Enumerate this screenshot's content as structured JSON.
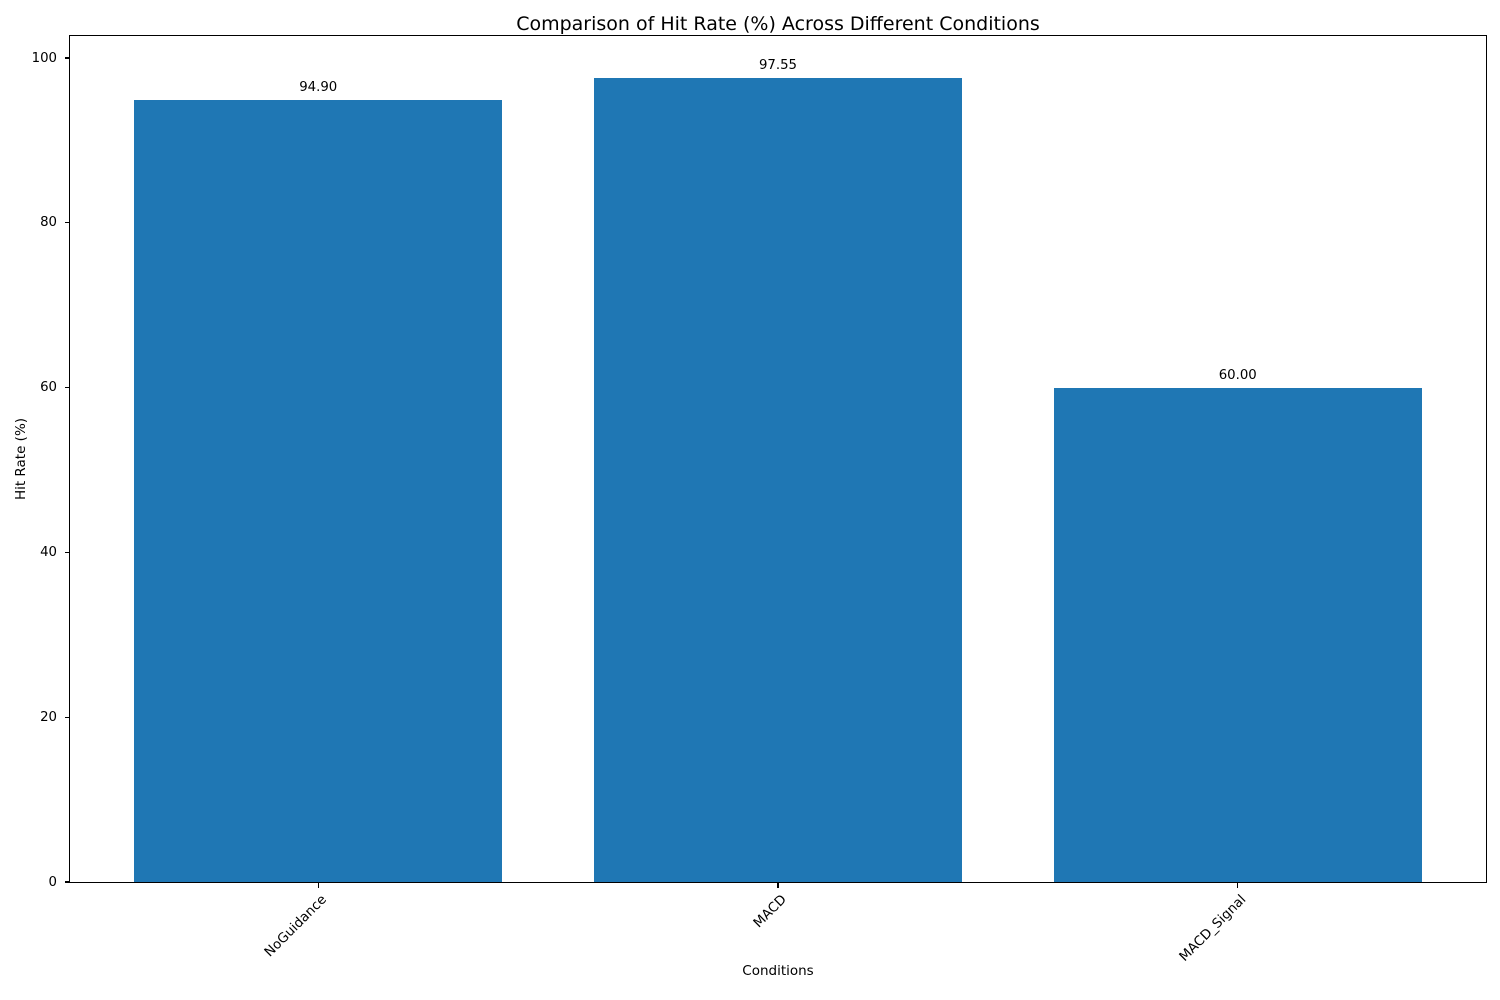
{
  "chart_data": {
    "type": "bar",
    "title": "Comparison of Hit Rate (%) Across Different Conditions",
    "xlabel": "Conditions",
    "ylabel": "Hit Rate (%)",
    "categories": [
      "NoGuidance",
      "MACD",
      "MACD_Signal"
    ],
    "values": [
      94.9,
      97.55,
      60.0
    ],
    "value_labels": [
      "94.90",
      "97.55",
      "60.00"
    ],
    "yticks": [
      0,
      20,
      40,
      60,
      80,
      100
    ],
    "ylim": [
      0,
      102.67
    ],
    "bar_color": "#1f77b4",
    "x_tick_rotation_deg": 45,
    "grid": false,
    "legend_position": "none"
  }
}
